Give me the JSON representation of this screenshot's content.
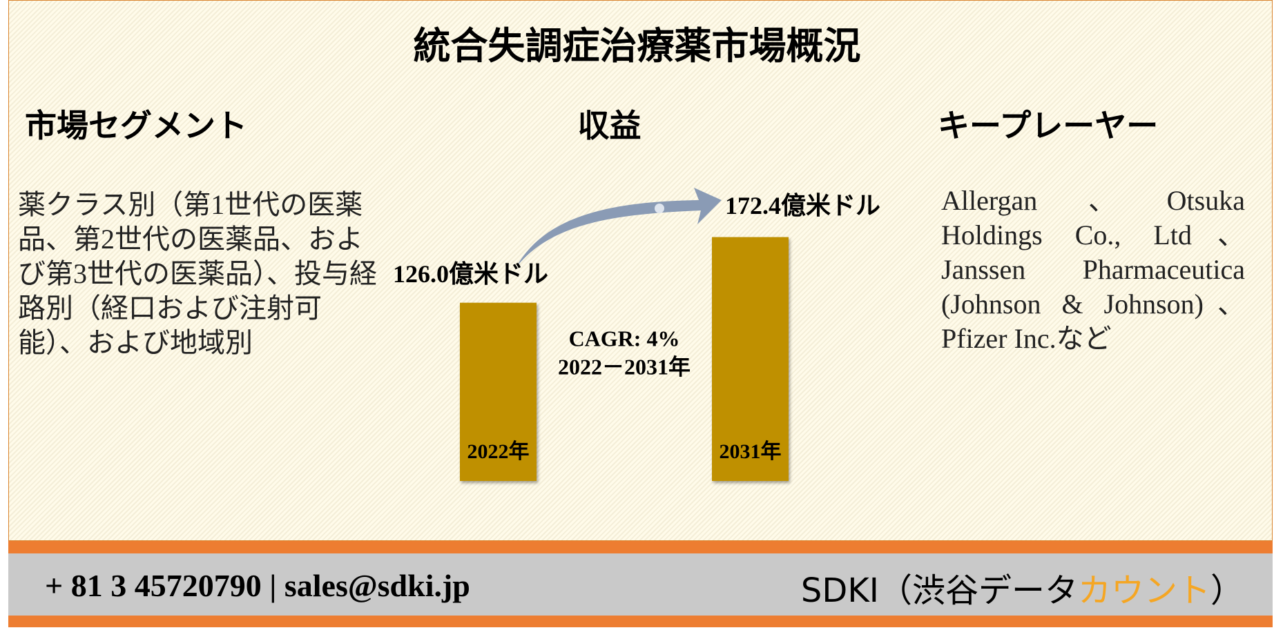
{
  "title": "統合失調症治療薬市場概況",
  "segments": {
    "heading": "市場セグメント",
    "text": "薬クラス別（第1世代の医薬品、第2世代の医薬品、および第3世代の医薬品）、投与経路別（経口および注射可能）、および地域別"
  },
  "chart_data": {
    "type": "bar",
    "title": "収益",
    "categories": [
      "2022年",
      "2031年"
    ],
    "values": [
      126.0,
      172.4
    ],
    "value_labels": [
      "126.0億米ドル",
      "172.4億米ドル"
    ],
    "color": "#bf9000",
    "cagr": "CAGR: 4%",
    "period": "2022－2031年"
  },
  "players": {
    "heading": "キープレーヤー",
    "text": "Allergan、Otsuka Holdings Co., Ltd、Janssen Pharmaceutica (Johnson & Johnson)、Pfizer Inc.など"
  },
  "footer": {
    "contact": "+ 81 3 45720790 | sales@sdki.jp",
    "company": "SDKI（渋谷データ",
    "company_highlight": "カウント",
    "company_end": "）"
  }
}
